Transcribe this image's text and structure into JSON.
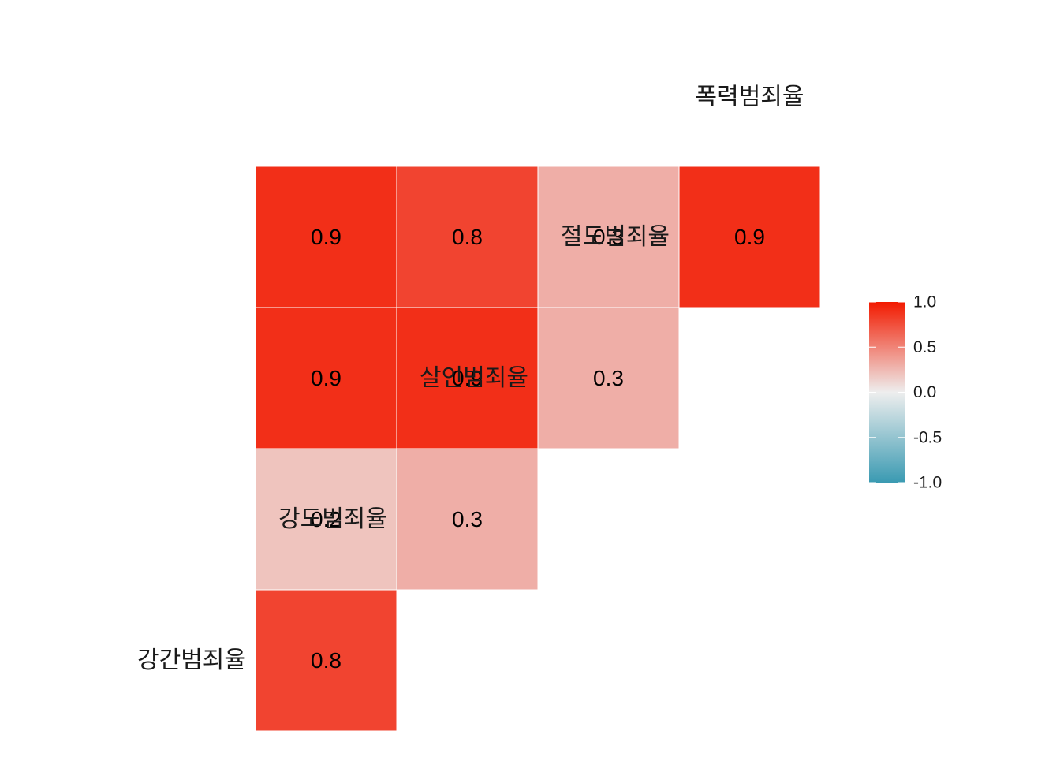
{
  "chart_data": {
    "type": "heatmap",
    "variables": [
      "강간범죄율",
      "강도범죄율",
      "살인범죄율",
      "절도범죄율",
      "폭력범죄율"
    ],
    "cells": [
      {
        "row": "강간범죄율",
        "col": "강도범죄율",
        "value": 0.8
      },
      {
        "row": "강간범죄율",
        "col": "살인범죄율",
        "value": 0.2
      },
      {
        "row": "강간범죄율",
        "col": "절도범죄율",
        "value": 0.9
      },
      {
        "row": "강간범죄율",
        "col": "폭력범죄율",
        "value": 0.9
      },
      {
        "row": "강도범죄율",
        "col": "살인범죄율",
        "value": 0.3
      },
      {
        "row": "강도범죄율",
        "col": "절도범죄율",
        "value": 0.9
      },
      {
        "row": "강도범죄율",
        "col": "폭력범죄율",
        "value": 0.8
      },
      {
        "row": "살인범죄율",
        "col": "절도범죄율",
        "value": 0.3
      },
      {
        "row": "살인범죄율",
        "col": "폭력범죄율",
        "value": 0.3
      },
      {
        "row": "절도범죄율",
        "col": "폭력범죄율",
        "value": 0.9
      }
    ],
    "color_scale": {
      "low": "#3A9AB2",
      "mid": "#EEEEEE",
      "high": "#F21A00",
      "limits": [
        -1.0,
        1.0
      ],
      "ticks": [
        1.0,
        0.5,
        0.0,
        -0.5,
        -1.0
      ],
      "tick_labels": [
        "1.0",
        "0.5",
        "0.0",
        "-0.5",
        "-1.0"
      ]
    },
    "legend_position": "right",
    "grid": false
  }
}
